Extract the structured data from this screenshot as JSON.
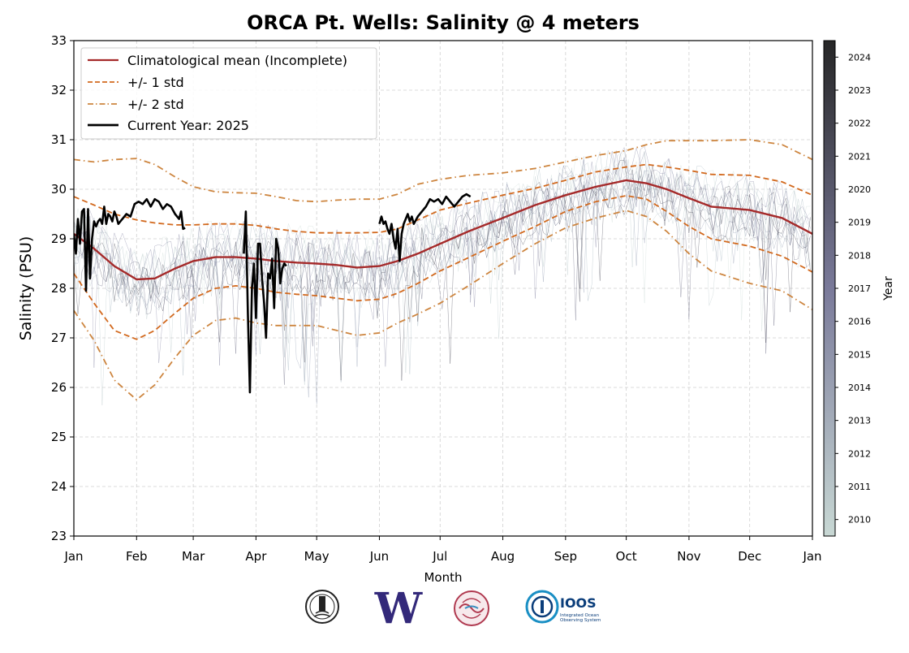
{
  "chart_data": {
    "type": "line",
    "title": "ORCA Pt. Wells: Salinity @ 4 meters",
    "xlabel": "Month",
    "ylabel": "Salinity (PSU)",
    "ylim": [
      23,
      33
    ],
    "yticks": [
      23,
      24,
      25,
      26,
      27,
      28,
      29,
      30,
      31,
      32,
      33
    ],
    "xlim": [
      0,
      365
    ],
    "xticks": [
      {
        "day": 0,
        "label": "Jan"
      },
      {
        "day": 31,
        "label": "Feb"
      },
      {
        "day": 59,
        "label": "Mar"
      },
      {
        "day": 90,
        "label": "Apr"
      },
      {
        "day": 120,
        "label": "May"
      },
      {
        "day": 151,
        "label": "Jun"
      },
      {
        "day": 181,
        "label": "Jul"
      },
      {
        "day": 212,
        "label": "Aug"
      },
      {
        "day": 243,
        "label": "Sep"
      },
      {
        "day": 273,
        "label": "Oct"
      },
      {
        "day": 304,
        "label": "Nov"
      },
      {
        "day": 334,
        "label": "Dec"
      },
      {
        "day": 365,
        "label": "Jan"
      }
    ],
    "grid": true,
    "legend": {
      "position": "top-left",
      "entries": [
        {
          "label": "Climatological mean (Incomplete)",
          "color": "#a52a2a",
          "style": "solid"
        },
        {
          "label": "+/- 1 std",
          "color": "#d2691e",
          "style": "dashed"
        },
        {
          "label": "+/- 2 std",
          "color": "#cd853f",
          "style": "dashdot"
        },
        {
          "label": "Current Year: 2025",
          "color": "#000000",
          "style": "solid"
        }
      ]
    },
    "x_units": "day of year",
    "series": [
      {
        "name": "Climatological mean (Incomplete)",
        "color": "#a52a2a",
        "style": "solid",
        "x": [
          0,
          10,
          20,
          31,
          40,
          50,
          59,
          70,
          80,
          90,
          100,
          110,
          120,
          130,
          140,
          151,
          160,
          170,
          181,
          195,
          212,
          228,
          243,
          258,
          273,
          283,
          293,
          304,
          315,
          334,
          350,
          365
        ],
        "y": [
          29.1,
          28.8,
          28.45,
          28.18,
          28.2,
          28.4,
          28.55,
          28.63,
          28.63,
          28.6,
          28.55,
          28.52,
          28.5,
          28.47,
          28.42,
          28.45,
          28.55,
          28.7,
          28.9,
          29.15,
          29.42,
          29.68,
          29.88,
          30.05,
          30.18,
          30.12,
          30.0,
          29.82,
          29.65,
          29.58,
          29.42,
          29.1
        ]
      },
      {
        "name": "+/- 1 std",
        "color": "#d2691e",
        "style": "dashed",
        "x": [
          0,
          10,
          20,
          31,
          40,
          50,
          59,
          70,
          80,
          90,
          100,
          110,
          120,
          130,
          140,
          151,
          160,
          170,
          181,
          195,
          212,
          228,
          243,
          258,
          273,
          283,
          293,
          304,
          315,
          334,
          350,
          365
        ],
        "y": [
          29.85,
          29.68,
          29.5,
          29.38,
          29.32,
          29.28,
          29.28,
          29.3,
          29.3,
          29.27,
          29.2,
          29.15,
          29.12,
          29.12,
          29.12,
          29.13,
          29.2,
          29.38,
          29.58,
          29.72,
          29.88,
          30.02,
          30.18,
          30.35,
          30.45,
          30.5,
          30.45,
          30.38,
          30.3,
          30.28,
          30.15,
          29.88
        ]
      },
      {
        "name": "-1 std",
        "color": "#d2691e",
        "style": "dashed",
        "x": [
          0,
          10,
          20,
          31,
          40,
          50,
          59,
          70,
          80,
          90,
          100,
          110,
          120,
          130,
          140,
          151,
          160,
          170,
          181,
          195,
          212,
          228,
          243,
          258,
          273,
          283,
          293,
          304,
          315,
          334,
          350,
          365
        ],
        "y": [
          28.3,
          27.7,
          27.15,
          26.97,
          27.15,
          27.5,
          27.8,
          28.0,
          28.05,
          28.0,
          27.92,
          27.88,
          27.85,
          27.8,
          27.75,
          27.78,
          27.9,
          28.1,
          28.35,
          28.62,
          28.95,
          29.25,
          29.55,
          29.75,
          29.87,
          29.8,
          29.55,
          29.25,
          29.0,
          28.85,
          28.65,
          28.33
        ]
      },
      {
        "name": "+/- 2 std",
        "color": "#cd853f",
        "style": "dashdot",
        "x": [
          0,
          10,
          20,
          31,
          40,
          50,
          59,
          70,
          80,
          90,
          100,
          110,
          120,
          130,
          140,
          151,
          160,
          170,
          181,
          195,
          212,
          228,
          243,
          258,
          273,
          283,
          293,
          304,
          315,
          334,
          350,
          365
        ],
        "y": [
          30.6,
          30.55,
          30.6,
          30.62,
          30.5,
          30.25,
          30.05,
          29.95,
          29.93,
          29.92,
          29.85,
          29.77,
          29.75,
          29.78,
          29.8,
          29.8,
          29.9,
          30.1,
          30.2,
          30.28,
          30.33,
          30.42,
          30.55,
          30.68,
          30.78,
          30.9,
          30.98,
          30.98,
          30.98,
          31.0,
          30.9,
          30.6
        ]
      },
      {
        "name": "-2 std",
        "color": "#cd853f",
        "style": "dashdot",
        "x": [
          0,
          10,
          20,
          31,
          40,
          50,
          59,
          70,
          80,
          90,
          100,
          110,
          120,
          130,
          140,
          151,
          160,
          170,
          181,
          195,
          212,
          228,
          243,
          258,
          273,
          283,
          293,
          304,
          315,
          334,
          350,
          365
        ],
        "y": [
          27.55,
          26.95,
          26.15,
          25.75,
          26.05,
          26.6,
          27.05,
          27.35,
          27.4,
          27.3,
          27.25,
          27.25,
          27.25,
          27.15,
          27.05,
          27.1,
          27.3,
          27.48,
          27.7,
          28.05,
          28.5,
          28.9,
          29.22,
          29.42,
          29.57,
          29.45,
          29.15,
          28.7,
          28.35,
          28.1,
          27.95,
          27.57
        ]
      }
    ],
    "current_year": {
      "name": "Current Year: 2025",
      "color": "#000000",
      "segments": [
        {
          "x": [
            0,
            1,
            2,
            3,
            4,
            5,
            6,
            7,
            8,
            9,
            10,
            11,
            12,
            13,
            14,
            15,
            16,
            17,
            18,
            19,
            20,
            21,
            22,
            24,
            26,
            28,
            30,
            32,
            34,
            36,
            38,
            40,
            42,
            44,
            46,
            48,
            50,
            52,
            53,
            54,
            55
          ],
          "y": [
            29.1,
            28.7,
            29.4,
            28.9,
            29.55,
            29.6,
            27.95,
            29.6,
            28.2,
            29.0,
            29.35,
            29.25,
            29.35,
            29.4,
            29.3,
            29.65,
            29.3,
            29.5,
            29.45,
            29.35,
            29.55,
            29.45,
            29.3,
            29.4,
            29.5,
            29.45,
            29.7,
            29.75,
            29.7,
            29.8,
            29.65,
            29.8,
            29.75,
            29.6,
            29.7,
            29.65,
            29.5,
            29.4,
            29.55,
            29.2,
            29.22
          ]
        },
        {
          "x": [
            84,
            85,
            86,
            87,
            88,
            89,
            90,
            91,
            92,
            93,
            94,
            95,
            96,
            97,
            98,
            99,
            100,
            101,
            102,
            103,
            104,
            105
          ],
          "y": [
            28.7,
            29.55,
            27.5,
            25.9,
            28.0,
            28.5,
            27.4,
            28.9,
            28.9,
            28.2,
            27.7,
            27.0,
            28.3,
            28.2,
            28.6,
            27.6,
            29.0,
            28.8,
            28.1,
            28.4,
            28.5,
            28.45
          ]
        },
        {
          "x": [
            151,
            152,
            153,
            154,
            155,
            156,
            157,
            158,
            159,
            160,
            161,
            162,
            163,
            164,
            165,
            166,
            167,
            168,
            170,
            172,
            174,
            176,
            178,
            180,
            182,
            184,
            186,
            188,
            190,
            192,
            194,
            196
          ],
          "y": [
            29.3,
            29.45,
            29.3,
            29.35,
            29.2,
            29.1,
            29.3,
            29.0,
            28.8,
            29.2,
            28.55,
            29.1,
            29.3,
            29.4,
            29.5,
            29.35,
            29.45,
            29.3,
            29.45,
            29.55,
            29.65,
            29.8,
            29.75,
            29.8,
            29.7,
            29.85,
            29.75,
            29.65,
            29.75,
            29.85,
            29.9,
            29.85
          ]
        }
      ]
    },
    "colorbar": {
      "label": "Year",
      "ticks": [
        "2010",
        "2011",
        "2012",
        "2013",
        "2014",
        "2015",
        "2016",
        "2017",
        "2018",
        "2019",
        "2020",
        "2021",
        "2022",
        "2023",
        "2024"
      ],
      "color_low": "#c8d8d4",
      "color_mid": "#6a6a8e",
      "color_high": "#262626"
    }
  },
  "logos": [
    {
      "name": "lighthouse-seal-logo",
      "text": ""
    },
    {
      "name": "uw-logo",
      "text": "W"
    },
    {
      "name": "nanoos-logo",
      "text": ""
    },
    {
      "name": "ioos-logo",
      "text": "IOOS",
      "subtext": "Integrated Ocean Observing System"
    }
  ]
}
